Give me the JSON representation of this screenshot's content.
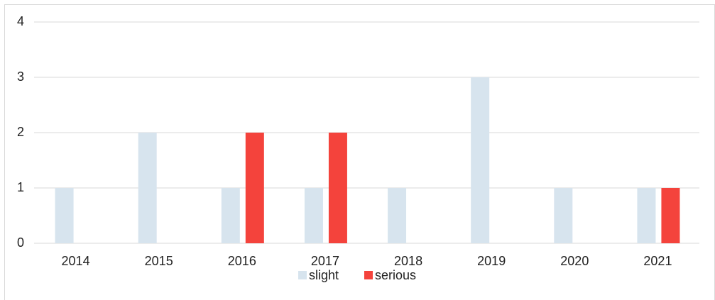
{
  "chart_data": {
    "type": "bar",
    "categories": [
      "2014",
      "2015",
      "2016",
      "2017",
      "2018",
      "2019",
      "2020",
      "2021"
    ],
    "series": [
      {
        "name": "slight",
        "color": "#d7e4ee",
        "values": [
          1,
          2,
          1,
          1,
          1,
          3,
          1,
          1
        ]
      },
      {
        "name": "serious",
        "color": "#f4433c",
        "values": [
          0,
          0,
          2,
          2,
          0,
          0,
          0,
          1
        ]
      }
    ],
    "ylim": [
      0,
      4
    ],
    "yticks": [
      0,
      1,
      2,
      3,
      4
    ],
    "grid": true,
    "legend": "bottom"
  }
}
